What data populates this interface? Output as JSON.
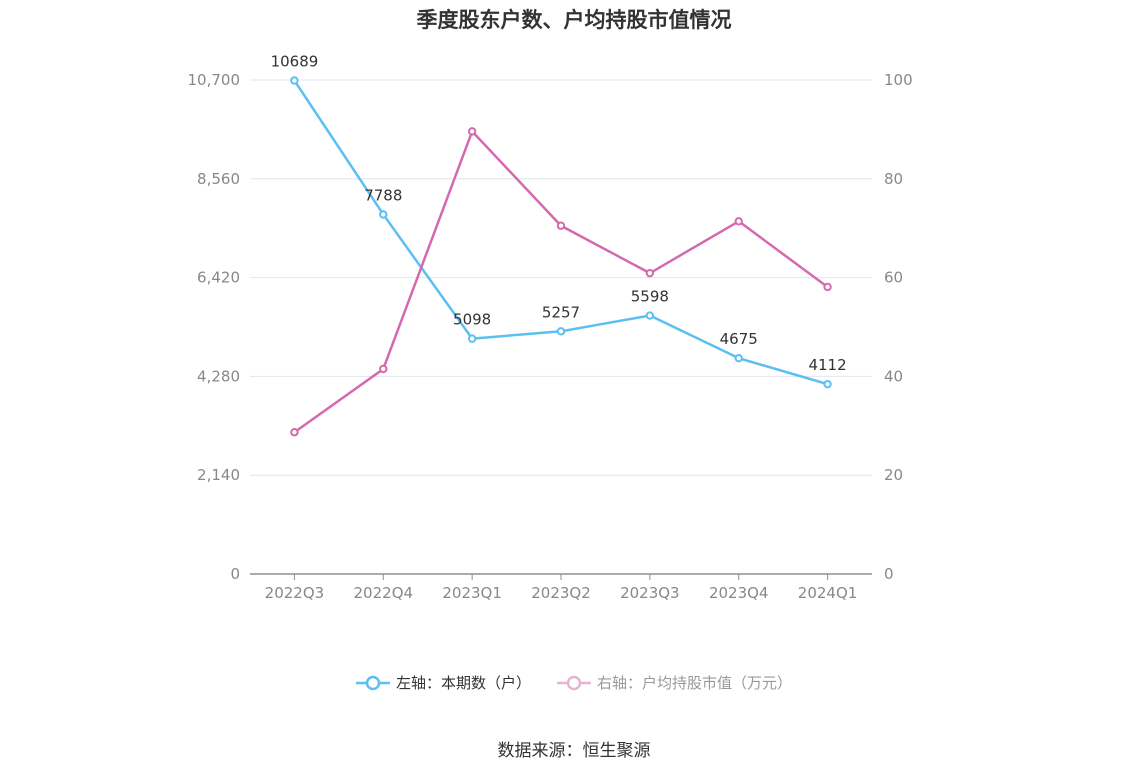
{
  "chart_data": {
    "type": "line",
    "title": "季度股东户数、户均持股市值情况",
    "categories": [
      "2022Q3",
      "2022Q4",
      "2023Q1",
      "2023Q2",
      "2023Q3",
      "2023Q4",
      "2024Q1"
    ],
    "series": [
      {
        "name": "左轴：本期数（户）",
        "axis": "left",
        "color": "#5bbff2",
        "values": [
          10689,
          7788,
          5098,
          5257,
          5598,
          4675,
          4112
        ],
        "data_labels": [
          "10689",
          "7788",
          "5098",
          "5257",
          "5598",
          "4675",
          "4112"
        ]
      },
      {
        "name": "右轴：户均持股市值（万元）",
        "axis": "right",
        "color": "#d46aae",
        "values": [
          28.7,
          41.5,
          89.6,
          70.5,
          60.9,
          71.4,
          58.1
        ]
      }
    ],
    "left_axis": {
      "min": 0,
      "max": 10700,
      "ticks": [
        "0",
        "2,140",
        "4,280",
        "6,420",
        "8,560",
        "10,700"
      ]
    },
    "right_axis": {
      "min": 0,
      "max": 100,
      "ticks": [
        "0",
        "20",
        "40",
        "60",
        "80",
        "100"
      ]
    },
    "grid": true,
    "legend_position": "bottom"
  },
  "source": "数据来源：恒生聚源"
}
